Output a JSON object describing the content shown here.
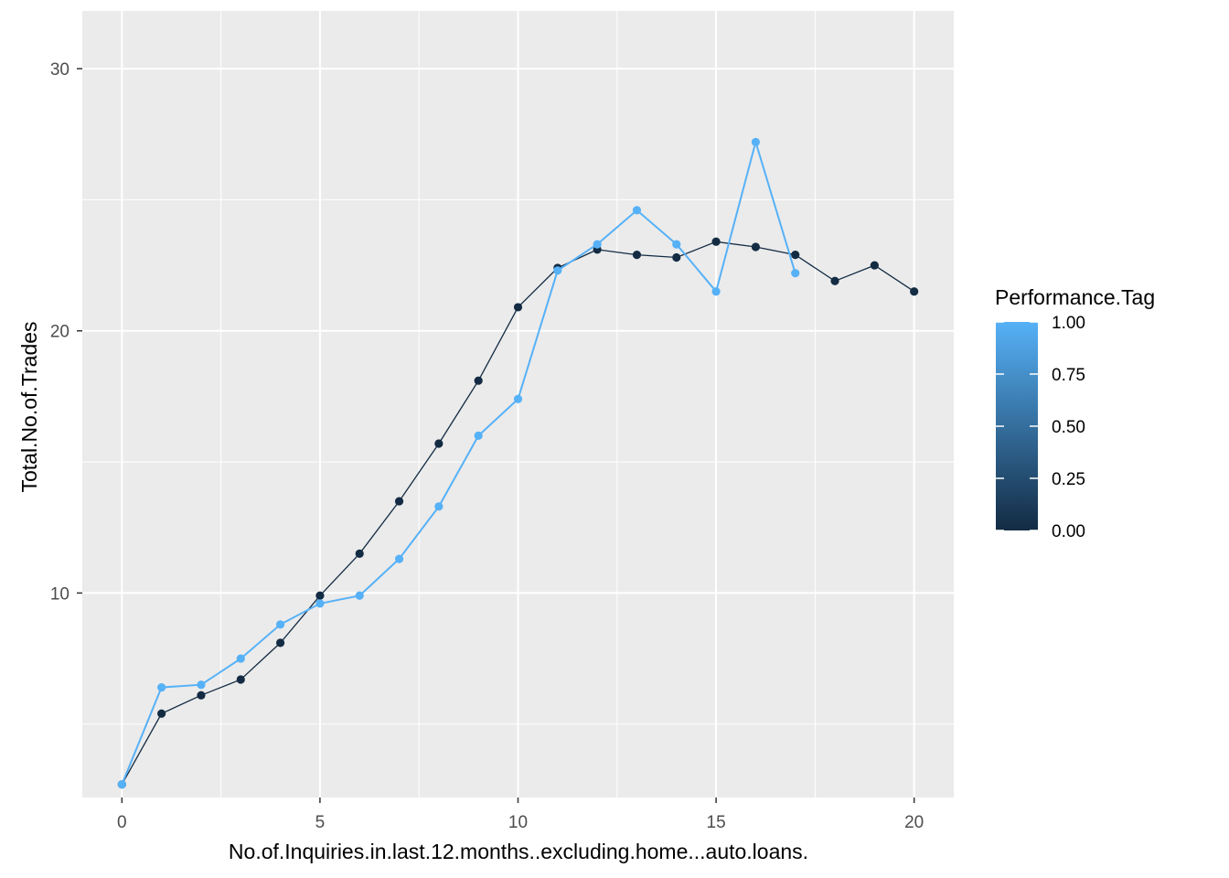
{
  "chart_data": {
    "type": "line",
    "xlabel": "No.of.Inquiries.in.last.12.months..excluding.home...auto.loans.",
    "ylabel": "Total.No.of.Trades",
    "xlim": [
      -1,
      21
    ],
    "ylim": [
      2.2,
      32.2
    ],
    "x_ticks": [
      0,
      5,
      10,
      15,
      20
    ],
    "x_tick_labels": [
      "0",
      "5",
      "10",
      "15",
      "20"
    ],
    "y_ticks": [
      10,
      20,
      30
    ],
    "y_tick_labels": [
      "10",
      "20",
      "30"
    ],
    "x_minor_ticks": [
      2.5,
      7.5,
      12.5,
      17.5
    ],
    "y_minor_ticks": [
      5,
      15,
      25
    ],
    "grid": true,
    "legend": {
      "title": "Performance.Tag",
      "position": "right",
      "type": "colorbar",
      "labels": [
        "1.00",
        "0.75",
        "0.50",
        "0.25",
        "0.00"
      ],
      "breaks": [
        1.0,
        0.75,
        0.5,
        0.25,
        0.0
      ],
      "low_color": "#132B43",
      "high_color": "#56B1F7"
    },
    "series": [
      {
        "tag": 0,
        "color": "#132B43",
        "x": [
          0,
          1,
          2,
          3,
          4,
          5,
          6,
          7,
          8,
          9,
          10,
          11,
          12,
          13,
          14,
          15,
          16,
          17,
          18,
          19,
          20
        ],
        "y": [
          2.7,
          5.4,
          6.1,
          6.7,
          8.1,
          9.9,
          11.5,
          13.5,
          15.7,
          18.1,
          20.9,
          22.4,
          23.1,
          22.9,
          22.8,
          23.4,
          23.2,
          22.9,
          21.9,
          22.5,
          21.5
        ]
      },
      {
        "tag": 1,
        "color": "#56B1F7",
        "x": [
          0,
          1,
          2,
          3,
          4,
          5,
          6,
          7,
          8,
          9,
          10,
          11,
          12,
          13,
          14,
          15,
          16,
          17
        ],
        "y": [
          2.7,
          6.4,
          6.5,
          7.5,
          8.8,
          9.6,
          9.9,
          11.3,
          13.3,
          16.0,
          17.4,
          22.3,
          23.3,
          24.6,
          23.3,
          21.5,
          27.2,
          22.2
        ]
      }
    ]
  }
}
